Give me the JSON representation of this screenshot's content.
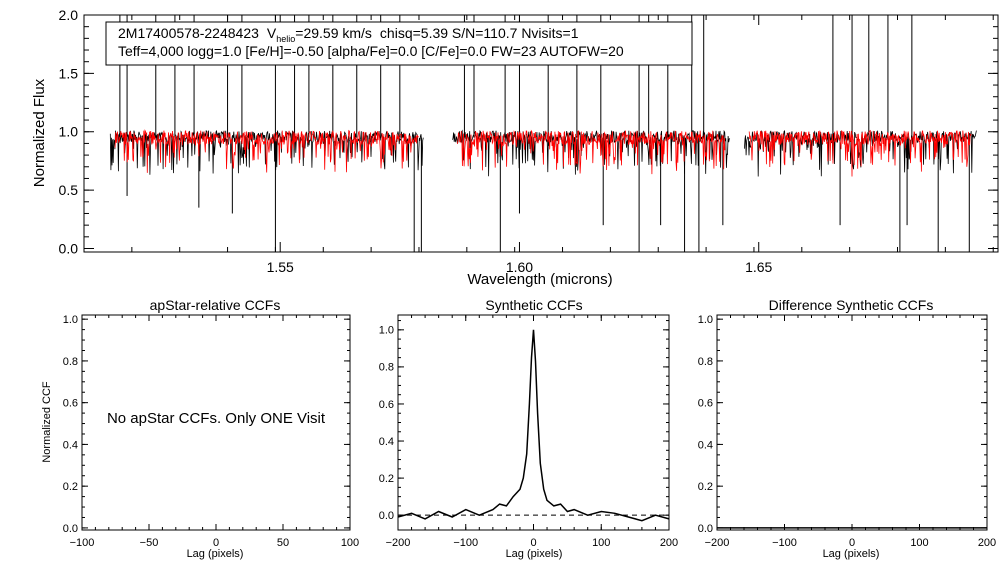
{
  "colors": {
    "observed": "#000000",
    "model": "#ff0000",
    "axes": "#000000",
    "background": "#ffffff"
  },
  "chart_data": [
    {
      "id": "spectrum",
      "type": "line",
      "xlabel": "Wavelength (microns)",
      "ylabel": "Normalized Flux",
      "xlim": [
        1.509,
        1.7
      ],
      "ylim": [
        -0.03,
        2.0
      ],
      "xticks": [
        1.55,
        1.6,
        1.65
      ],
      "xtick_labels": [
        "1.55",
        "1.60",
        "1.65"
      ],
      "yticks": [
        0.0,
        0.5,
        1.0,
        1.5,
        2.0
      ],
      "ytick_labels": [
        "0.0",
        "0.5",
        "1.0",
        "1.5",
        "2.0"
      ],
      "chip_ranges": [
        [
          1.5145,
          1.58
        ],
        [
          1.586,
          1.644
        ],
        [
          1.647,
          1.6955
        ]
      ],
      "continuum_level": 0.95,
      "info_box": {
        "line1": {
          "star_id": "2M17400578-2248423",
          "vhelio_symbol": "V",
          "vhelio_subscript": "helio",
          "vhelio_value": "=29.59 km/s",
          "rest": "chisq=5.39  S/N=110.7  Nvisits=1"
        },
        "line2": "Teff=4,000 logg=1.0 [Fe/H]=-0.50 [alpha/Fe]=0.0 [C/Fe]=0.0 FW=23 AUTOFW=20"
      },
      "series": [
        {
          "role": "observed",
          "color": "#000000"
        },
        {
          "role": "model",
          "color": "#ff0000"
        }
      ],
      "spikes_up": [
        1.5165,
        1.518,
        1.524,
        1.528,
        1.532,
        1.539,
        1.542,
        1.549,
        1.553,
        1.556,
        1.561,
        1.566,
        1.571,
        1.575,
        1.5885,
        1.5905,
        1.597,
        1.6,
        1.606,
        1.612,
        1.617,
        1.625,
        1.627,
        1.631,
        1.636,
        1.6385,
        1.6655,
        1.6695,
        1.673,
        1.677,
        1.682
      ],
      "spikes_down": [
        [
          1.518,
          0.45
        ],
        [
          1.533,
          0.35
        ],
        [
          1.54,
          0.3
        ],
        [
          1.549,
          -0.03
        ],
        [
          1.578,
          -0.03
        ],
        [
          1.5795,
          -0.03
        ],
        [
          1.596,
          -0.03
        ],
        [
          1.6,
          0.3
        ],
        [
          1.6175,
          0.2
        ],
        [
          1.625,
          -0.03
        ],
        [
          1.6295,
          0.2
        ],
        [
          1.6345,
          -0.03
        ],
        [
          1.6375,
          -0.03
        ],
        [
          1.6425,
          0.2
        ],
        [
          1.667,
          0.2
        ],
        [
          1.6795,
          -0.03
        ],
        [
          1.681,
          0.2
        ],
        [
          1.6875,
          -0.03
        ],
        [
          1.694,
          -0.03
        ]
      ]
    },
    {
      "id": "apstar-ccf",
      "type": "line",
      "title": "apStar-relative CCFs",
      "xlabel": "Lag (pixels)",
      "ylabel": "Normalized CCF",
      "xlim": [
        -100,
        100
      ],
      "ylim": [
        -0.01,
        1.02
      ],
      "xticks": [
        -100,
        -50,
        0,
        50,
        100
      ],
      "xtick_labels": [
        "-100",
        "-50",
        "0",
        "50",
        "100"
      ],
      "yticks": [
        0.0,
        0.2,
        0.4,
        0.6,
        0.8,
        1.0
      ],
      "ytick_labels": [
        "0.0",
        "0.2",
        "0.4",
        "0.6",
        "0.8",
        "1.0"
      ],
      "annotation": "No apStar CCFs.  Only ONE Visit"
    },
    {
      "id": "synthetic-ccf",
      "type": "line",
      "title": "Synthetic CCFs",
      "xlabel": "Lag (pixels)",
      "xlim": [
        -200,
        200
      ],
      "ylim": [
        -0.08,
        1.08
      ],
      "xticks": [
        -200,
        -100,
        0,
        100,
        200
      ],
      "xtick_labels": [
        "-200",
        "-100",
        "0",
        "100",
        "200"
      ],
      "yticks": [
        0.0,
        0.2,
        0.4,
        0.6,
        0.8,
        1.0
      ],
      "ytick_labels": [
        "0.0",
        "0.2",
        "0.4",
        "0.6",
        "0.8",
        "1.0"
      ],
      "reference_line": 0.0,
      "peak": {
        "x": 0,
        "y": 1.0
      },
      "x": [
        -200,
        -180,
        -160,
        -140,
        -120,
        -100,
        -80,
        -60,
        -50,
        -40,
        -30,
        -20,
        -15,
        -10,
        -6,
        -3,
        0,
        3,
        6,
        10,
        15,
        20,
        30,
        40,
        50,
        60,
        80,
        100,
        120,
        140,
        160,
        180,
        200
      ],
      "y": [
        -0.01,
        0.01,
        -0.02,
        0.02,
        -0.01,
        0.03,
        0.0,
        0.03,
        0.06,
        0.05,
        0.1,
        0.14,
        0.2,
        0.33,
        0.6,
        0.85,
        1.0,
        0.83,
        0.55,
        0.28,
        0.14,
        0.08,
        0.05,
        0.06,
        0.02,
        0.03,
        0.0,
        0.02,
        0.01,
        -0.01,
        -0.03,
        0.0,
        -0.02
      ]
    },
    {
      "id": "difference-ccf",
      "type": "line",
      "title": "Difference Synthetic CCFs",
      "xlabel": "Lag (pixels)",
      "xlim": [
        -200,
        200
      ],
      "ylim": [
        -0.01,
        1.02
      ],
      "xticks": [
        -200,
        -100,
        0,
        100,
        200
      ],
      "xtick_labels": [
        "-200",
        "-100",
        "0",
        "100",
        "200"
      ],
      "yticks": [
        0.0,
        0.2,
        0.4,
        0.6,
        0.8,
        1.0
      ],
      "ytick_labels": [
        "0.0",
        "0.2",
        "0.4",
        "0.6",
        "0.8",
        "1.0"
      ],
      "x": [
        -200,
        200
      ],
      "y": [
        0.0,
        0.0
      ]
    }
  ]
}
